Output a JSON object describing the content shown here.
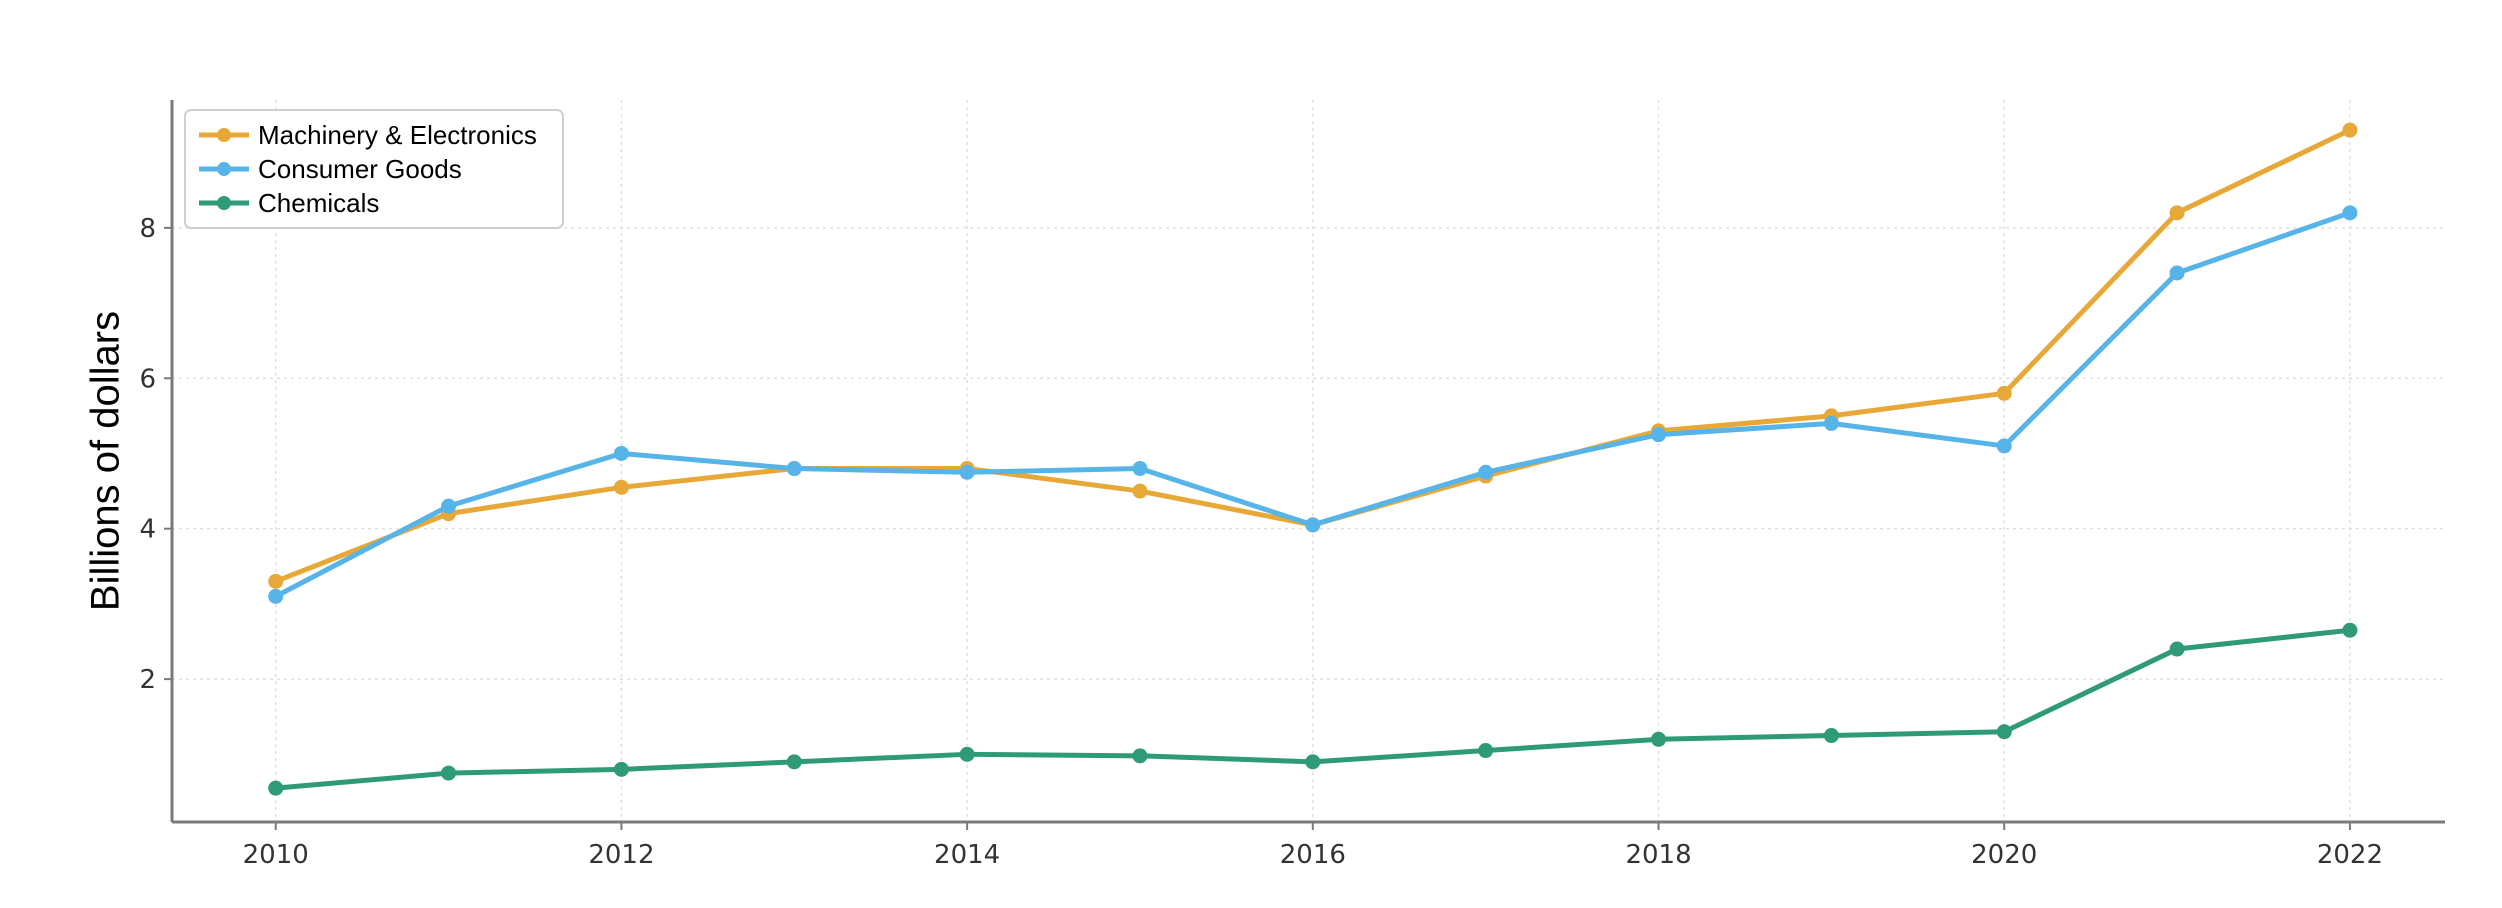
{
  "chart_data": {
    "type": "line",
    "title": "",
    "xlabel": "",
    "ylabel": "Billions of dollars",
    "x": [
      2010,
      2011,
      2012,
      2013,
      2014,
      2015,
      2016,
      2017,
      2018,
      2019,
      2020,
      2021,
      2022
    ],
    "xticks": [
      "2010",
      "2012",
      "2014",
      "2016",
      "2018",
      "2020",
      "2022"
    ],
    "yticks": [
      "2",
      "4",
      "6",
      "8"
    ],
    "xlim": [
      2009.4,
      2022.55
    ],
    "ylim": [
      0.1,
      9.7
    ],
    "grid": true,
    "legend_position": "top-left",
    "series": [
      {
        "name": "Machinery & Electronics",
        "color": "#E8A838",
        "values": [
          3.3,
          4.2,
          4.55,
          4.8,
          4.8,
          4.5,
          4.05,
          4.7,
          5.3,
          5.5,
          5.8,
          8.2,
          9.3
        ]
      },
      {
        "name": "Consumer Goods",
        "color": "#56B4E9",
        "values": [
          3.1,
          4.3,
          5.0,
          4.8,
          4.75,
          4.8,
          4.05,
          4.75,
          5.25,
          5.4,
          5.1,
          7.4,
          8.2
        ]
      },
      {
        "name": "Chemicals",
        "color": "#2E9A78",
        "values": [
          0.55,
          0.75,
          0.8,
          0.9,
          1.0,
          0.98,
          0.9,
          1.05,
          1.2,
          1.25,
          1.3,
          2.4,
          2.65
        ]
      }
    ]
  }
}
